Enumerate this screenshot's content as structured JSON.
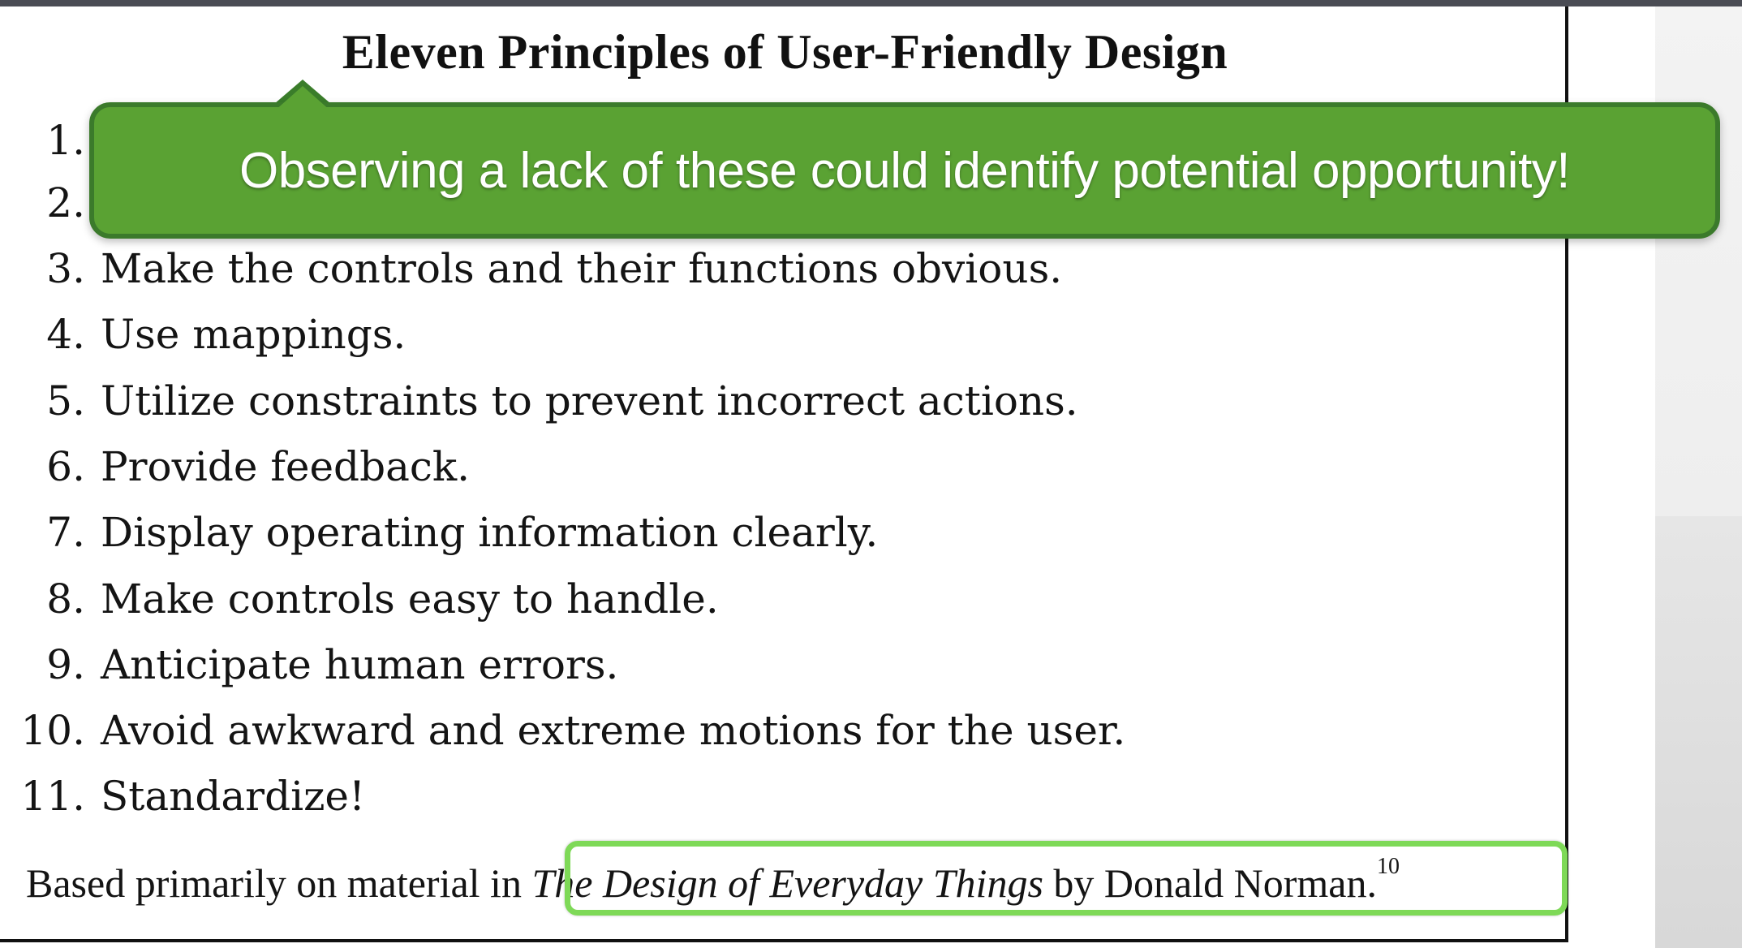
{
  "document": {
    "title": "Eleven Principles of User-Friendly Design",
    "items": [
      {
        "num": "1.",
        "text": ""
      },
      {
        "num": "2.",
        "text": ""
      },
      {
        "num": "3.",
        "text": "Make the controls and their functions obvious."
      },
      {
        "num": "4.",
        "text": "Use mappings."
      },
      {
        "num": "5.",
        "text": "Utilize constraints to prevent incorrect actions."
      },
      {
        "num": "6.",
        "text": "Provide feedback."
      },
      {
        "num": "7.",
        "text": "Display operating information clearly."
      },
      {
        "num": "8.",
        "text": "Make controls easy to handle."
      },
      {
        "num": "9.",
        "text": "Anticipate  human errors."
      },
      {
        "num": "10.",
        "text": "Avoid awkward and extreme motions for the user."
      },
      {
        "num": "11.",
        "text": "Standardize!"
      }
    ],
    "footer": {
      "prefix": "Based primarily on material in ",
      "book_title": "The Design of Everyday Things",
      "suffix": " by Donald Norman.",
      "footnote": "10"
    }
  },
  "callout": {
    "text": "Observing a lack of these could identify potential opportunity!",
    "fill_color": "#5aa233",
    "border_color": "#3b7a2b"
  },
  "highlight": {
    "color": "#7ed957"
  }
}
